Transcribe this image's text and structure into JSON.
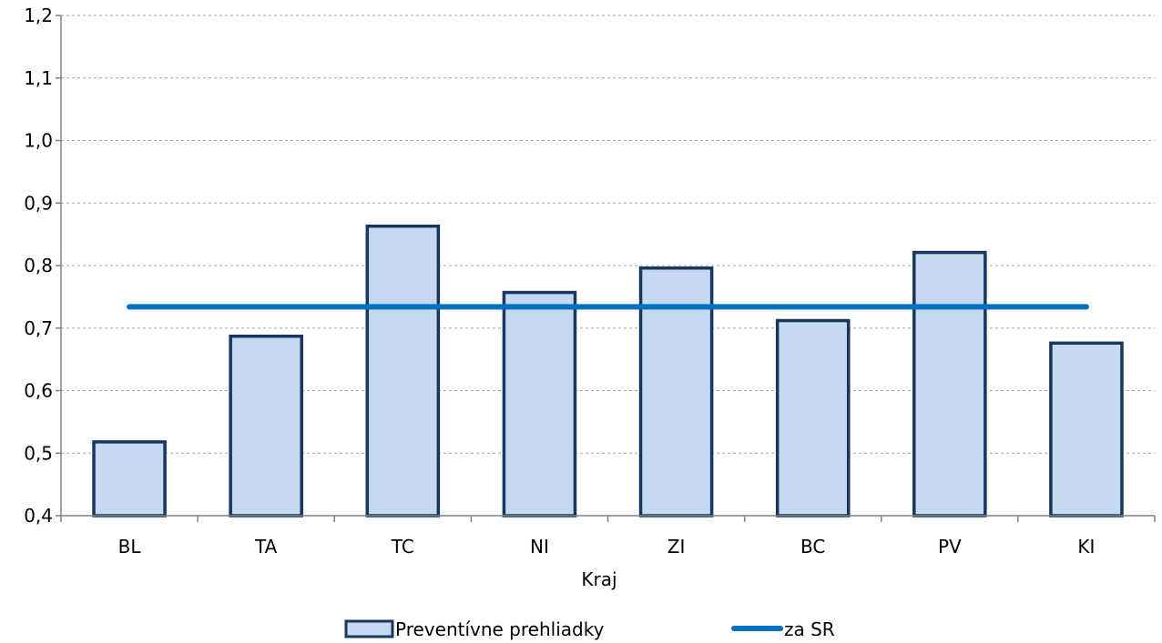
{
  "chart_data": {
    "type": "bar",
    "categories": [
      "BL",
      "TA",
      "TC",
      "NI",
      "ZI",
      "BC",
      "PV",
      "KI"
    ],
    "series": [
      {
        "name": "Preventívne prehliadky",
        "type": "bar",
        "values": [
          0.518,
          0.687,
          0.863,
          0.757,
          0.796,
          0.712,
          0.821,
          0.676
        ]
      }
    ],
    "reference_line": {
      "name": "za SR",
      "value": 0.734
    },
    "title": "",
    "xlabel": "Kraj",
    "ylabel": "",
    "ylim": [
      0.4,
      1.2
    ],
    "yticks": [
      0.4,
      0.5,
      0.6,
      0.7,
      0.8,
      0.9,
      1.0,
      1.1,
      1.2
    ],
    "ytick_labels": [
      "0,4",
      "0,5",
      "0,6",
      "0,7",
      "0,8",
      "0,9",
      "1,0",
      "1,1",
      "1,2"
    ],
    "grid": true,
    "legend_position": "bottom",
    "colors": {
      "bar_fill": "#c6d9f0",
      "bar_stroke": "#17375e",
      "line": "#0070c0",
      "grid": "#a6a6a6",
      "axis": "#808080"
    }
  }
}
